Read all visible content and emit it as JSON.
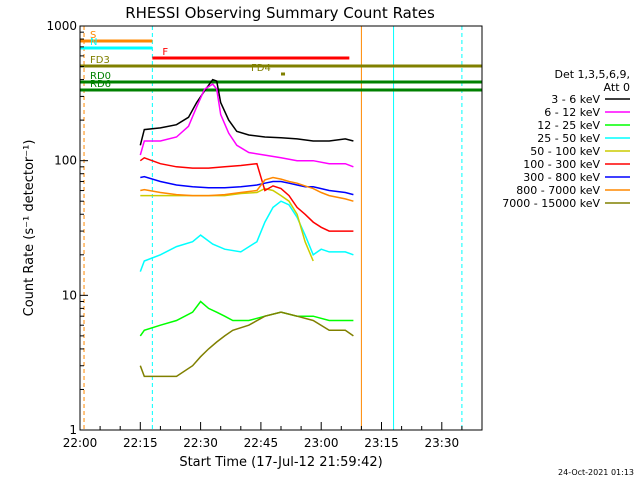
{
  "chart_data": {
    "type": "line",
    "title": "RHESSI Observing Summary Count Rates",
    "xlabel": "Start Time (17-Jul-12 21:59:42)",
    "ylabel": "Count Rate (s⁻¹ detector⁻¹)",
    "yscale": "log",
    "ylim": [
      1,
      1000
    ],
    "xlim_minutes": [
      0,
      100
    ],
    "x_tick_labels": [
      "22:00",
      "22:15",
      "22:30",
      "22:45",
      "23:00",
      "23:15",
      "23:30"
    ],
    "x_tick_minutes": [
      0,
      15,
      30,
      45,
      60,
      75,
      90
    ],
    "y_tick_labels": [
      "1",
      "10",
      "100",
      "1000"
    ],
    "y_tick_values": [
      1,
      10,
      100,
      1000
    ],
    "legend_title_1": "Det 1,3,5,6,9,",
    "legend_title_2": "Att 0",
    "legend_position": "right",
    "timestamp": "24-Oct-2021 01:13",
    "series": [
      {
        "name": "3 - 6 keV",
        "color": "#000000",
        "x": [
          15,
          16,
          20,
          24,
          27,
          29,
          31,
          33,
          34,
          35,
          37,
          39,
          42,
          46,
          50,
          54,
          58,
          62,
          66,
          68
        ],
        "y": [
          130,
          170,
          175,
          185,
          210,
          270,
          330,
          400,
          390,
          270,
          200,
          165,
          155,
          150,
          148,
          145,
          140,
          140,
          145,
          140
        ]
      },
      {
        "name": "6 - 12 keV",
        "color": "#ff00ff",
        "x": [
          15,
          16,
          20,
          24,
          27,
          29,
          31,
          33,
          34,
          35,
          37,
          39,
          42,
          46,
          50,
          54,
          58,
          62,
          66,
          68
        ],
        "y": [
          110,
          140,
          140,
          150,
          180,
          250,
          340,
          370,
          340,
          220,
          160,
          130,
          115,
          110,
          105,
          100,
          100,
          95,
          95,
          90
        ]
      },
      {
        "name": "12 - 25 keV",
        "color": "#00ff00",
        "x": [
          15,
          16,
          20,
          24,
          28,
          30,
          32,
          34,
          36,
          38,
          42,
          46,
          50,
          54,
          58,
          62,
          66,
          68
        ],
        "y": [
          5,
          5.5,
          6,
          6.5,
          7.5,
          9,
          8,
          7.5,
          7,
          6.5,
          6.5,
          7,
          7.5,
          7,
          7,
          6.5,
          6.5,
          6.5
        ]
      },
      {
        "name": "25 - 50 keV",
        "color": "#00ffff",
        "x": [
          15,
          16,
          20,
          24,
          28,
          30,
          33,
          36,
          40,
          44,
          46,
          48,
          50,
          52,
          54,
          56,
          58,
          60,
          62,
          66,
          68
        ],
        "y": [
          15,
          18,
          20,
          23,
          25,
          28,
          24,
          22,
          21,
          25,
          35,
          45,
          50,
          47,
          38,
          28,
          20,
          22,
          21,
          21,
          20
        ]
      },
      {
        "name": "50 - 100 keV",
        "color": "#cccc00",
        "x": [
          15,
          16,
          20,
          24,
          28,
          32,
          36,
          40,
          44,
          46,
          48,
          50,
          52,
          54,
          56,
          58
        ],
        "y": [
          55,
          55,
          55,
          55,
          55,
          55,
          55,
          57,
          58,
          62,
          60,
          55,
          50,
          40,
          25,
          18
        ]
      },
      {
        "name": "100 - 300 keV",
        "color": "#ff0000",
        "x": [
          15,
          16,
          20,
          24,
          28,
          32,
          36,
          40,
          44,
          46,
          48,
          50,
          52,
          54,
          56,
          58,
          60,
          62,
          66,
          68
        ],
        "y": [
          100,
          105,
          95,
          90,
          88,
          88,
          90,
          92,
          95,
          60,
          65,
          62,
          55,
          45,
          40,
          35,
          32,
          30,
          30,
          30
        ]
      },
      {
        "name": "300 - 800 keV",
        "color": "#0000ff",
        "x": [
          15,
          16,
          20,
          24,
          28,
          32,
          36,
          40,
          44,
          46,
          48,
          50,
          52,
          54,
          56,
          58,
          60,
          62,
          66,
          68
        ],
        "y": [
          75,
          76,
          70,
          66,
          64,
          63,
          63,
          64,
          66,
          68,
          70,
          70,
          68,
          66,
          64,
          64,
          62,
          60,
          58,
          56
        ]
      },
      {
        "name": "800 - 7000 keV",
        "color": "#ff8800",
        "x": [
          15,
          16,
          20,
          24,
          28,
          32,
          36,
          40,
          44,
          46,
          48,
          50,
          52,
          54,
          56,
          58,
          60,
          62,
          66,
          68
        ],
        "y": [
          60,
          61,
          58,
          56,
          55,
          55,
          56,
          58,
          60,
          72,
          75,
          73,
          70,
          68,
          65,
          62,
          58,
          55,
          52,
          50
        ]
      },
      {
        "name": "7000 - 15000 keV",
        "color": "#808000",
        "x": [
          15,
          16,
          20,
          24,
          28,
          30,
          32,
          34,
          36,
          38,
          42,
          46,
          50,
          54,
          58,
          62,
          66,
          68
        ],
        "y": [
          3,
          2.5,
          2.5,
          2.5,
          3,
          3.5,
          4,
          4.5,
          5,
          5.5,
          6,
          7,
          7.5,
          7,
          6.5,
          5.5,
          5.5,
          5
        ]
      }
    ],
    "flag_bars": [
      {
        "label": "S",
        "color": "#ff8800",
        "x0": 0,
        "x1": 18,
        "level": 1
      },
      {
        "label": "N",
        "color": "#00ffff",
        "x0": 0,
        "x1": 18,
        "level": 2
      },
      {
        "label": "F",
        "color": "#ff0000",
        "x0": 18,
        "x1": 67,
        "level": 3
      },
      {
        "label": "FD3",
        "color": "#808000",
        "x0": 0,
        "x1": 100,
        "level": 4
      },
      {
        "label": "FD4",
        "color": "#808000",
        "x0": 50,
        "x1": 51,
        "level": 5
      },
      {
        "label": "RD0",
        "color": "#008000",
        "x0": 0,
        "x1": 100,
        "level": 6
      },
      {
        "label": "RD6",
        "color": "#008000",
        "x0": 0,
        "x1": 100,
        "level": 7
      }
    ]
  }
}
